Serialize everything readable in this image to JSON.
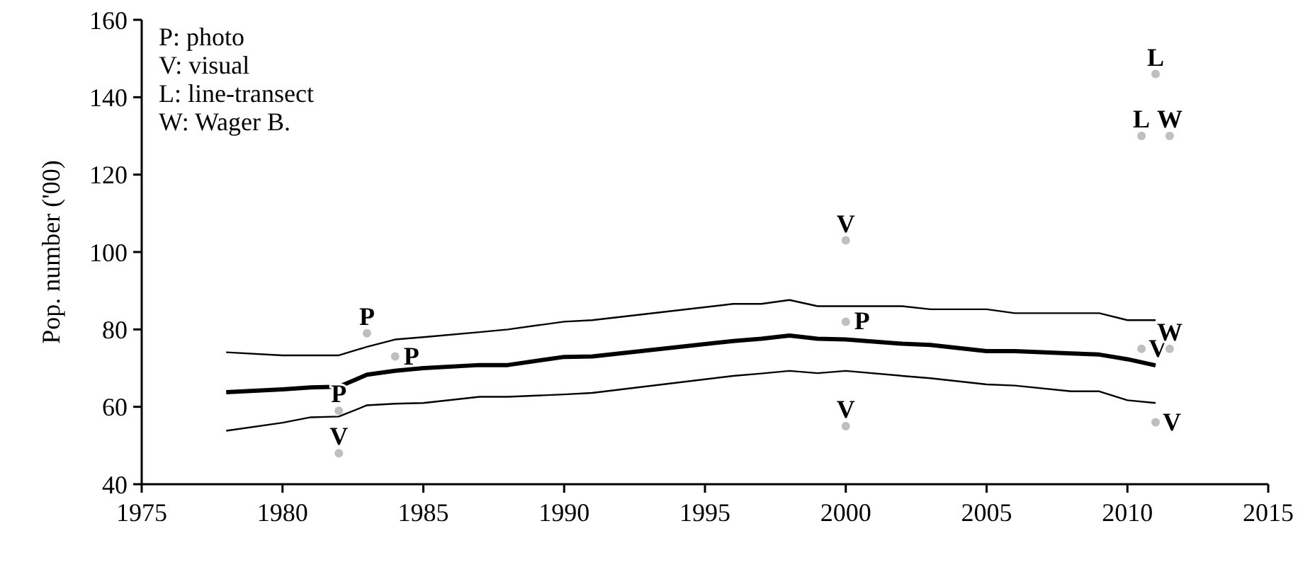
{
  "chart_data": {
    "type": "line",
    "ylabel": "Pop. number ('00)",
    "xlim": [
      1975,
      2015
    ],
    "xticks": [
      1975,
      1980,
      1985,
      1990,
      1995,
      2000,
      2005,
      2010,
      2015
    ],
    "ylim": [
      40,
      160
    ],
    "yticks": [
      40,
      60,
      80,
      100,
      120,
      140,
      160
    ],
    "grid": false,
    "marker": "none",
    "line_style": "solid",
    "annotations": [
      "P: photo",
      "V: visual",
      "L: line-transect",
      "W: Wager B."
    ],
    "x": [
      1978,
      1980,
      1981,
      1982,
      1983,
      1984,
      1985,
      1987,
      1988,
      1990,
      1991,
      1996,
      1997,
      1998,
      1999,
      2000,
      2002,
      2003,
      2005,
      2006,
      2008,
      2009,
      2010,
      2011
    ],
    "series": [
      {
        "color": "#000000",
        "values": [
          63.8,
          64.5,
          65,
          65.2,
          68.3,
          69.3,
          70,
          70.8,
          70.8,
          72.9,
          73,
          77,
          77.6,
          78.4,
          77.6,
          77.4,
          76.3,
          76,
          74.4,
          74.4,
          73.8,
          73.5,
          72.3,
          70.7
        ]
      },
      {
        "color": "#000000",
        "values": [
          74.1,
          73.3,
          73.3,
          73.3,
          75.5,
          77.4,
          78,
          79.3,
          80,
          82,
          82.4,
          86.6,
          86.6,
          87.6,
          86,
          86,
          86,
          85.2,
          85.2,
          84.2,
          84.2,
          84.2,
          82.4,
          82.4
        ]
      },
      {
        "color": "#000000",
        "values": [
          53.8,
          55.9,
          57.3,
          57.5,
          60.4,
          60.8,
          61,
          62.6,
          62.6,
          63.2,
          63.6,
          68,
          68.6,
          69.3,
          68.7,
          69.3,
          68,
          67.4,
          65.8,
          65.5,
          64,
          64,
          61.7,
          61
        ]
      },
      {
        "type": "scatter",
        "marker": "circle",
        "color": "#bfbfbf",
        "x": [
          1982,
          1983,
          1984,
          2000
        ],
        "values": [
          59,
          79,
          73,
          82
        ],
        "value_labels": [
          "P",
          "P",
          "P",
          "P"
        ]
      },
      {
        "type": "scatter",
        "marker": "circle",
        "color": "#bfbfbf",
        "x": [
          1982,
          2000,
          2000,
          2010.5,
          2011
        ],
        "values": [
          48,
          103,
          55,
          75,
          56
        ],
        "value_labels": [
          "V",
          "V",
          "V",
          "V",
          "V"
        ]
      },
      {
        "type": "scatter",
        "marker": "circle",
        "color": "#bfbfbf",
        "x": [
          2011,
          2010.5
        ],
        "values": [
          146,
          130
        ],
        "value_labels": [
          "L",
          "L"
        ]
      },
      {
        "type": "scatter",
        "marker": "circle",
        "color": "#bfbfbf",
        "x": [
          2011.5,
          2011.5
        ],
        "values": [
          130,
          75
        ],
        "value_labels": [
          "W",
          "W"
        ]
      }
    ]
  }
}
